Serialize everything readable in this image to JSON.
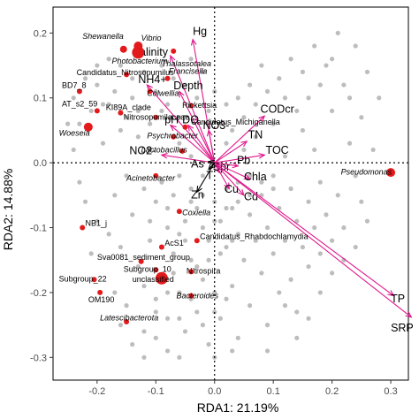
{
  "chart_data": {
    "type": "scatter",
    "title": "",
    "xlabel": "RDA1: 21.19%",
    "ylabel": "RDA2: 14.88%",
    "xlim": [
      -0.275,
      0.33
    ],
    "ylim": [
      -0.335,
      0.24
    ],
    "x_ticks": [
      -0.2,
      -0.1,
      0.0,
      0.1,
      0.2,
      0.3
    ],
    "x_tick_labels": [
      "-0.2",
      "-0.1",
      "0.0",
      "0.1",
      "0.2",
      "0.3"
    ],
    "y_ticks": [
      -0.3,
      -0.2,
      -0.1,
      0.0,
      0.1,
      0.2
    ],
    "y_tick_labels": [
      "-0.3",
      "-0.2",
      "-0.1",
      "0.0",
      "0.1",
      "0.2"
    ],
    "zero_lines": "dotted",
    "grid": false,
    "colors": {
      "arrow": "#e0188c",
      "arrow_black": "#000000",
      "taxon_point": "#e31a1c",
      "background_point": "#bdbdbd"
    },
    "env_arrows": [
      {
        "label": "Hg",
        "x": -0.037,
        "y": 0.19,
        "color": "arrow",
        "lx": -0.025,
        "ly": 0.197,
        "anchor": "middle"
      },
      {
        "label": "Salinity",
        "x": -0.075,
        "y": 0.165,
        "color": "arrow",
        "lx": -0.14,
        "ly": 0.165,
        "anchor": "start"
      },
      {
        "label": "NH4+",
        "x": -0.115,
        "y": 0.12,
        "color": "arrow",
        "lx": -0.13,
        "ly": 0.123,
        "anchor": "start"
      },
      {
        "label": "Depth",
        "x": -0.06,
        "y": 0.11,
        "color": "arrow",
        "lx": -0.07,
        "ly": 0.113,
        "anchor": "start"
      },
      {
        "label": "pH",
        "x": -0.075,
        "y": 0.058,
        "color": "arrow",
        "lx": -0.085,
        "ly": 0.061,
        "anchor": "start"
      },
      {
        "label": "DO",
        "x": -0.045,
        "y": 0.058,
        "color": "arrow",
        "lx": -0.055,
        "ly": 0.061,
        "anchor": "start"
      },
      {
        "label": "NO3-",
        "x": -0.01,
        "y": 0.05,
        "color": "arrow",
        "lx": -0.02,
        "ly": 0.052,
        "anchor": "start"
      },
      {
        "label": "NO2-",
        "x": -0.09,
        "y": 0.012,
        "color": "arrow",
        "lx": -0.145,
        "ly": 0.013,
        "anchor": "start"
      },
      {
        "label": "CODcr",
        "x": 0.085,
        "y": 0.072,
        "color": "arrow",
        "lx": 0.078,
        "ly": 0.077,
        "anchor": "start"
      },
      {
        "label": "TN",
        "x": 0.055,
        "y": 0.033,
        "color": "arrow",
        "lx": 0.057,
        "ly": 0.038,
        "anchor": "start"
      },
      {
        "label": "TOC",
        "x": 0.085,
        "y": 0.012,
        "color": "arrow",
        "lx": 0.087,
        "ly": 0.014,
        "anchor": "start"
      },
      {
        "label": "Pb",
        "x": 0.04,
        "y": -0.005,
        "color": "arrow",
        "lx": 0.038,
        "ly": -0.002,
        "anchor": "start"
      },
      {
        "label": "Spr",
        "x": 0.008,
        "y": -0.015,
        "color": "arrow",
        "lx": -0.003,
        "ly": -0.012,
        "anchor": "start"
      },
      {
        "label": "Chla",
        "x": 0.06,
        "y": -0.025,
        "color": "arrow",
        "lx": 0.05,
        "ly": -0.027,
        "anchor": "start"
      },
      {
        "label": "Cu",
        "x": 0.025,
        "y": -0.04,
        "color": "arrow",
        "lx": 0.017,
        "ly": -0.046,
        "anchor": "start"
      },
      {
        "label": "Cd",
        "x": 0.05,
        "y": -0.05,
        "color": "arrow",
        "lx": 0.05,
        "ly": -0.058,
        "anchor": "start"
      },
      {
        "label": "TP",
        "x": 0.305,
        "y": -0.205,
        "color": "arrow",
        "lx": 0.3,
        "ly": -0.215,
        "anchor": "start"
      },
      {
        "label": "SRP",
        "x": 0.335,
        "y": -0.238,
        "color": "arrow",
        "lx": 0.3,
        "ly": -0.26,
        "anchor": "start"
      },
      {
        "label": "As",
        "x": -0.01,
        "y": 0.002,
        "color": "arrow_black",
        "lx": -0.04,
        "ly": -0.007,
        "anchor": "start"
      },
      {
        "label": "T",
        "x": -0.01,
        "y": -0.01,
        "color": "arrow_black",
        "lx": -0.014,
        "ly": -0.025,
        "anchor": "start"
      },
      {
        "label": "Zn",
        "x": -0.03,
        "y": -0.045,
        "color": "arrow_black",
        "lx": -0.04,
        "ly": -0.055,
        "anchor": "start"
      }
    ],
    "taxa": [
      {
        "label": "Shewanella",
        "x": -0.155,
        "y": 0.175,
        "size": 4,
        "lx": -0.225,
        "ly": 0.191,
        "italic": true
      },
      {
        "label": "Vibrio",
        "x": -0.13,
        "y": 0.18,
        "size": 5,
        "lx": -0.125,
        "ly": 0.188,
        "italic": true
      },
      {
        "label": "Photobacterium",
        "x": -0.13,
        "y": 0.17,
        "size": 7,
        "lx": -0.175,
        "ly": 0.153,
        "italic": true
      },
      {
        "label": "Thalassotalea",
        "x": -0.07,
        "y": 0.172,
        "size": 3,
        "lx": -0.09,
        "ly": 0.149,
        "italic": true
      },
      {
        "label": "Candidatus_Nitrosopumilus",
        "x": -0.15,
        "y": 0.136,
        "size": 3,
        "lx": -0.235,
        "ly": 0.135,
        "italic": false
      },
      {
        "label": "Francisella",
        "x": -0.08,
        "y": 0.13,
        "size": 3,
        "lx": -0.078,
        "ly": 0.137,
        "italic": true
      },
      {
        "label": "BD7_8",
        "x": -0.23,
        "y": 0.11,
        "size": 3,
        "lx": -0.26,
        "ly": 0.115,
        "italic": false
      },
      {
        "label": "Colwellia",
        "x": -0.11,
        "y": 0.11,
        "size": 3,
        "lx": -0.115,
        "ly": 0.103,
        "italic": true
      },
      {
        "label": "AT_s2_59",
        "x": -0.2,
        "y": 0.08,
        "size": 3,
        "lx": -0.26,
        "ly": 0.087,
        "italic": false
      },
      {
        "label": "KI89A_clade",
        "x": -0.16,
        "y": 0.077,
        "size": 3,
        "lx": -0.185,
        "ly": 0.081,
        "italic": false
      },
      {
        "label": "Rickettsia",
        "x": -0.04,
        "y": 0.088,
        "size": 3,
        "lx": -0.055,
        "ly": 0.085,
        "italic": false
      },
      {
        "label": "Nitrosopumilaceae",
        "x": -0.1,
        "y": 0.07,
        "size": 3,
        "lx": -0.155,
        "ly": 0.066,
        "italic": false
      },
      {
        "label": "Candidatus_Michiganella",
        "x": -0.05,
        "y": 0.055,
        "size": 3,
        "lx": -0.04,
        "ly": 0.059,
        "italic": false
      },
      {
        "label": "Woeseia",
        "x": -0.215,
        "y": 0.055,
        "size": 5,
        "lx": -0.265,
        "ly": 0.042,
        "italic": true
      },
      {
        "label": "Psychrobacter",
        "x": -0.07,
        "y": 0.04,
        "size": 3,
        "lx": -0.115,
        "ly": 0.038,
        "italic": true
      },
      {
        "label": "Lactobacillus",
        "x": -0.055,
        "y": 0.018,
        "size": 3,
        "lx": -0.125,
        "ly": 0.016,
        "italic": true
      },
      {
        "label": "Acinetobacter",
        "x": -0.1,
        "y": -0.02,
        "size": 3,
        "lx": -0.15,
        "ly": -0.028,
        "italic": true
      },
      {
        "label": "Pseudomonas",
        "x": 0.3,
        "y": -0.015,
        "size": 5,
        "lx": 0.215,
        "ly": -0.018,
        "italic": true
      },
      {
        "label": "Coxiella",
        "x": -0.06,
        "y": -0.075,
        "size": 3,
        "lx": -0.055,
        "ly": -0.081,
        "italic": true
      },
      {
        "label": "NB1_j",
        "x": -0.225,
        "y": -0.1,
        "size": 3,
        "lx": -0.22,
        "ly": -0.097,
        "italic": false
      },
      {
        "label": "AcS1",
        "x": -0.09,
        "y": -0.13,
        "size": 3,
        "lx": -0.085,
        "ly": -0.128,
        "italic": false
      },
      {
        "label": "Candidatus_Rhabdochlamydia",
        "x": -0.03,
        "y": -0.12,
        "size": 3,
        "lx": -0.025,
        "ly": -0.118,
        "italic": false
      },
      {
        "label": "Sva0081_sediment_group",
        "x": -0.125,
        "y": -0.152,
        "size": 3,
        "lx": -0.2,
        "ly": -0.15,
        "italic": false
      },
      {
        "label": "Subgroup_10",
        "x": -0.1,
        "y": -0.165,
        "size": 3,
        "lx": -0.155,
        "ly": -0.168,
        "italic": false
      },
      {
        "label": "Nitrospira",
        "x": -0.04,
        "y": -0.168,
        "size": 3,
        "lx": -0.048,
        "ly": -0.171,
        "italic": false
      },
      {
        "label": "unclassified",
        "x": -0.09,
        "y": -0.178,
        "size": 7,
        "lx": -0.14,
        "ly": -0.184,
        "italic": false
      },
      {
        "label": "Subgroup_22",
        "x": -0.205,
        "y": -0.18,
        "size": 3,
        "lx": -0.265,
        "ly": -0.183,
        "italic": false
      },
      {
        "label": "OM190",
        "x": -0.195,
        "y": -0.2,
        "size": 3,
        "lx": -0.215,
        "ly": -0.215,
        "italic": false
      },
      {
        "label": "Bacteroides",
        "x": -0.04,
        "y": -0.205,
        "size": 3,
        "lx": -0.065,
        "ly": -0.209,
        "italic": true
      },
      {
        "label": "Latescibacterota",
        "x": -0.15,
        "y": -0.245,
        "size": 3,
        "lx": -0.195,
        "ly": -0.243,
        "italic": true
      }
    ],
    "background_points": [
      [
        -0.25,
        0.06
      ],
      [
        -0.24,
        0.02
      ],
      [
        -0.23,
        -0.03
      ],
      [
        -0.22,
        -0.06
      ],
      [
        -0.21,
        -0.14
      ],
      [
        -0.2,
        0.12
      ],
      [
        -0.2,
        -0.09
      ],
      [
        -0.19,
        0.03
      ],
      [
        -0.18,
        -0.11
      ],
      [
        -0.18,
        0.09
      ],
      [
        -0.17,
        -0.05
      ],
      [
        -0.17,
        -0.2
      ],
      [
        -0.16,
        0.05
      ],
      [
        -0.16,
        -0.13
      ],
      [
        -0.15,
        -0.02
      ],
      [
        -0.15,
        -0.22
      ],
      [
        -0.14,
        0.1
      ],
      [
        -0.14,
        -0.08
      ],
      [
        -0.13,
        -0.16
      ],
      [
        -0.13,
        0.04
      ],
      [
        -0.12,
        -0.04
      ],
      [
        -0.12,
        -0.26
      ],
      [
        -0.11,
        0.02
      ],
      [
        -0.11,
        -0.12
      ],
      [
        -0.1,
        -0.06
      ],
      [
        -0.1,
        -0.21
      ],
      [
        -0.09,
        0.08
      ],
      [
        -0.09,
        -0.03
      ],
      [
        -0.08,
        -0.1
      ],
      [
        -0.08,
        -0.24
      ],
      [
        -0.07,
        -0.05
      ],
      [
        -0.07,
        -0.14
      ],
      [
        -0.06,
        0.03
      ],
      [
        -0.06,
        -0.2
      ],
      [
        -0.05,
        -0.09
      ],
      [
        -0.05,
        -0.26
      ],
      [
        -0.04,
        -0.15
      ],
      [
        -0.04,
        0.01
      ],
      [
        -0.03,
        -0.07
      ],
      [
        -0.03,
        -0.23
      ],
      [
        -0.02,
        -0.1
      ],
      [
        -0.02,
        -0.18
      ],
      [
        -0.01,
        -0.12
      ],
      [
        -0.01,
        -0.28
      ],
      [
        0.0,
        -0.06
      ],
      [
        0.0,
        -0.2
      ],
      [
        0.01,
        -0.09
      ],
      [
        0.01,
        -0.24
      ],
      [
        0.02,
        -0.13
      ],
      [
        0.02,
        0.03
      ],
      [
        0.03,
        -0.07
      ],
      [
        0.03,
        -0.19
      ],
      [
        0.04,
        -0.11
      ],
      [
        0.04,
        -0.27
      ],
      [
        0.05,
        -0.15
      ],
      [
        0.05,
        0.02
      ],
      [
        0.06,
        -0.08
      ],
      [
        0.06,
        -0.22
      ],
      [
        0.07,
        -0.12
      ],
      [
        0.07,
        0.04
      ],
      [
        0.08,
        -0.17
      ],
      [
        0.08,
        -0.05
      ],
      [
        0.09,
        -0.1
      ],
      [
        0.09,
        -0.25
      ],
      [
        0.1,
        -0.02
      ],
      [
        0.1,
        -0.14
      ],
      [
        0.11,
        -0.07
      ],
      [
        0.11,
        -0.2
      ],
      [
        0.12,
        -0.12
      ],
      [
        0.12,
        0.01
      ],
      [
        0.13,
        -0.04
      ],
      [
        0.13,
        -0.18
      ],
      [
        0.14,
        -0.09
      ],
      [
        0.14,
        -0.23
      ],
      [
        0.15,
        -0.13
      ],
      [
        0.15,
        0.05
      ],
      [
        0.16,
        -0.06
      ],
      [
        0.16,
        -0.16
      ],
      [
        0.17,
        -0.1
      ],
      [
        0.17,
        0.02
      ],
      [
        0.18,
        -0.14
      ],
      [
        0.18,
        -0.03
      ],
      [
        0.19,
        -0.08
      ],
      [
        0.2,
        -0.12
      ],
      [
        0.2,
        0.08
      ],
      [
        0.21,
        -0.05
      ],
      [
        0.22,
        0.12
      ],
      [
        0.22,
        -0.1
      ],
      [
        0.23,
        0.03
      ],
      [
        0.24,
        0.18
      ],
      [
        0.24,
        -0.02
      ],
      [
        0.25,
        0.07
      ],
      [
        0.25,
        -0.06
      ],
      [
        0.26,
        0.14
      ],
      [
        0.27,
        0.02
      ],
      [
        0.28,
        0.1
      ],
      [
        0.19,
        0.15
      ],
      [
        0.21,
        0.2
      ],
      [
        0.23,
        0.1
      ],
      [
        0.26,
        -0.09
      ],
      [
        0.2,
        0.16
      ],
      [
        0.18,
        0.12
      ],
      [
        0.17,
        0.18
      ],
      [
        0.16,
        0.1
      ],
      [
        0.15,
        0.14
      ],
      [
        0.14,
        0.08
      ],
      [
        0.13,
        0.16
      ],
      [
        0.12,
        0.1
      ],
      [
        0.11,
        0.13
      ],
      [
        0.1,
        0.06
      ],
      [
        0.09,
        0.11
      ],
      [
        0.08,
        0.15
      ],
      [
        0.07,
        0.09
      ],
      [
        0.06,
        0.12
      ],
      [
        0.05,
        0.07
      ],
      [
        0.04,
        0.1
      ],
      [
        0.03,
        0.05
      ],
      [
        0.02,
        0.09
      ],
      [
        0.01,
        0.06
      ],
      [
        0.0,
        0.11
      ],
      [
        -0.01,
        0.08
      ],
      [
        -0.02,
        0.14
      ],
      [
        -0.03,
        0.1
      ],
      [
        -0.04,
        0.16
      ],
      [
        -0.05,
        0.12
      ],
      [
        -0.06,
        0.07
      ],
      [
        -0.07,
        0.13
      ],
      [
        -0.08,
        0.09
      ],
      [
        -0.09,
        0.15
      ],
      [
        -0.1,
        0.11
      ],
      [
        -0.11,
        0.06
      ],
      [
        -0.12,
        0.14
      ],
      [
        -0.13,
        0.08
      ],
      [
        -0.14,
        0.13
      ],
      [
        -0.15,
        0.07
      ],
      [
        -0.16,
        0.15
      ],
      [
        -0.17,
        0.11
      ],
      [
        -0.18,
        0.16
      ],
      [
        -0.19,
        0.09
      ],
      [
        -0.2,
        0.15
      ],
      [
        -0.21,
        0.08
      ],
      [
        -0.22,
        0.13
      ],
      [
        -0.23,
        0.06
      ],
      [
        -0.24,
        0.1
      ],
      [
        -0.06,
        -0.02
      ],
      [
        -0.04,
        -0.04
      ],
      [
        -0.02,
        -0.02
      ],
      [
        0.02,
        -0.04
      ],
      [
        0.04,
        -0.03
      ],
      [
        0.06,
        -0.02
      ],
      [
        0.08,
        -0.03
      ],
      [
        0.1,
        -0.04
      ],
      [
        -0.08,
        -0.07
      ],
      [
        -0.06,
        -0.11
      ],
      [
        -0.04,
        -0.06
      ],
      [
        -0.02,
        -0.05
      ],
      [
        0.0,
        -0.09
      ],
      [
        0.02,
        -0.07
      ],
      [
        0.04,
        -0.06
      ],
      [
        0.06,
        -0.05
      ],
      [
        -0.11,
        -0.09
      ],
      [
        -0.09,
        -0.13
      ],
      [
        -0.07,
        -0.17
      ],
      [
        -0.05,
        -0.12
      ],
      [
        -0.03,
        -0.16
      ],
      [
        -0.01,
        -0.15
      ],
      [
        0.01,
        -0.14
      ],
      [
        0.03,
        -0.12
      ],
      [
        -0.12,
        -0.19
      ],
      [
        -0.1,
        -0.23
      ],
      [
        -0.08,
        -0.2
      ],
      [
        -0.06,
        -0.24
      ],
      [
        -0.04,
        -0.21
      ],
      [
        -0.02,
        -0.25
      ],
      [
        0.0,
        -0.23
      ],
      [
        0.02,
        -0.21
      ],
      [
        -0.16,
        -0.25
      ],
      [
        -0.14,
        -0.28
      ],
      [
        -0.12,
        -0.3
      ],
      [
        -0.1,
        -0.27
      ],
      [
        -0.08,
        -0.29
      ],
      [
        -0.06,
        -0.3
      ],
      [
        0.0,
        -0.3
      ],
      [
        0.03,
        -0.29
      ],
      [
        0.12,
        -0.22
      ],
      [
        0.14,
        -0.27
      ],
      [
        0.16,
        -0.24
      ],
      [
        0.18,
        -0.2
      ],
      [
        0.2,
        -0.17
      ],
      [
        0.22,
        -0.15
      ],
      [
        0.24,
        -0.13
      ],
      [
        0.09,
        -0.29
      ]
    ]
  }
}
